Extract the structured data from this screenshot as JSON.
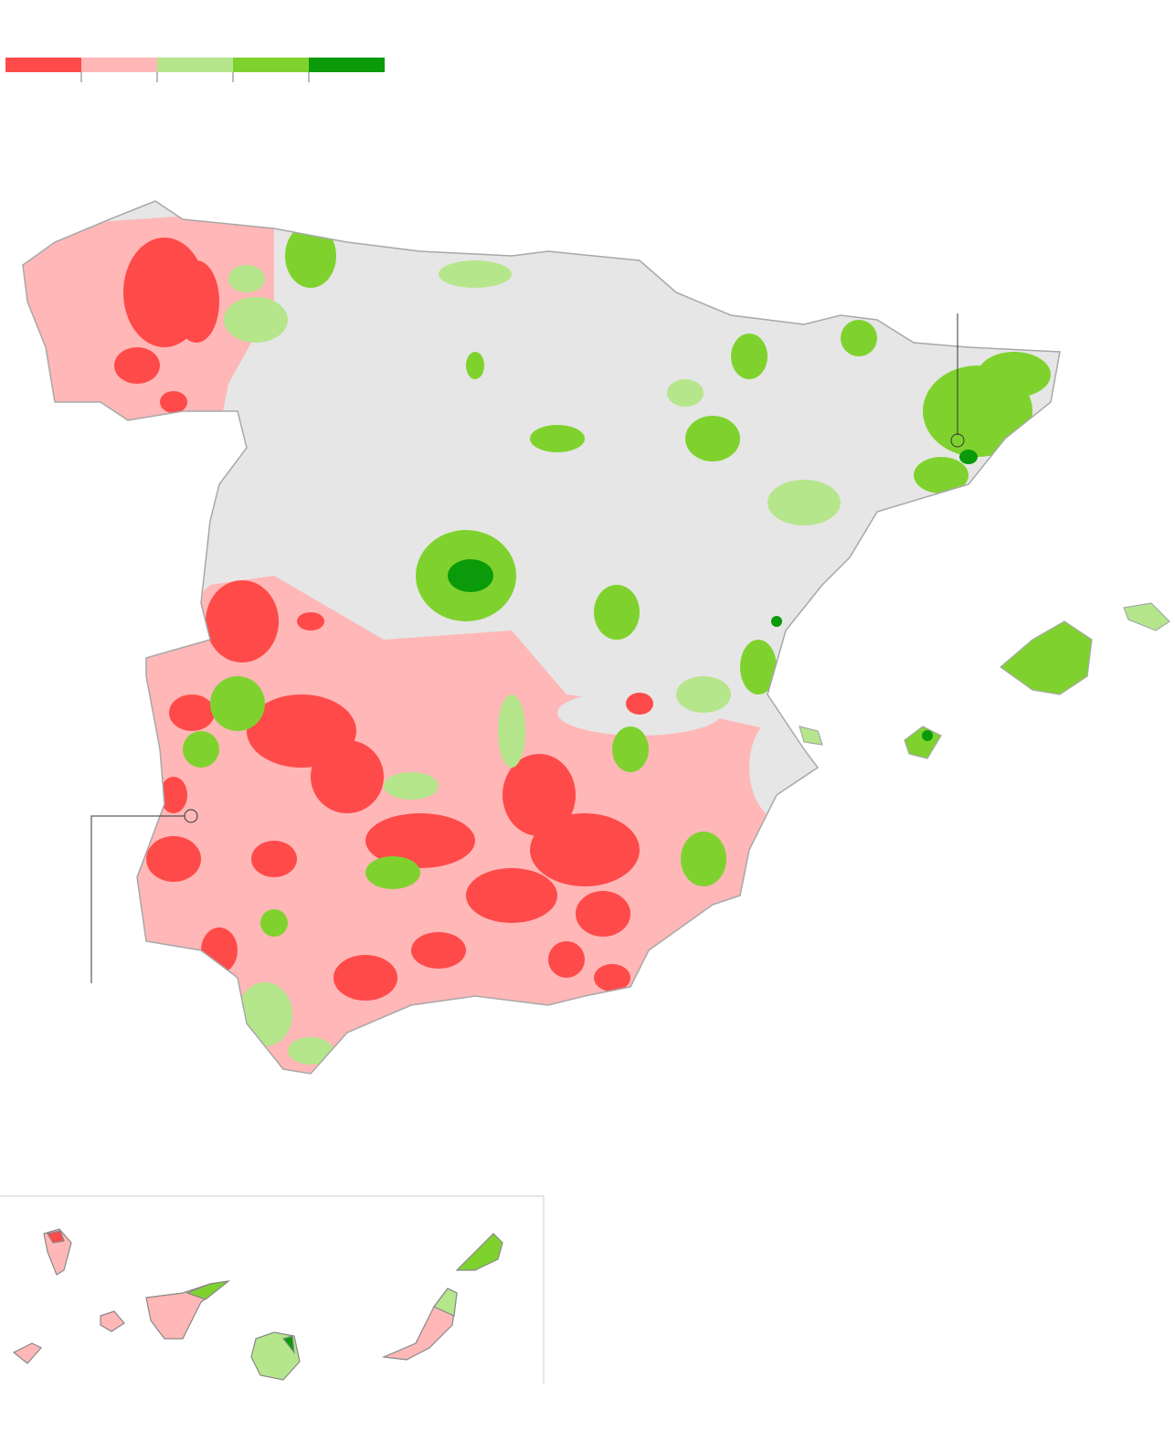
{
  "legend": {
    "colors": [
      "#ff4a4a",
      "#ffb7b7",
      "#b5e68c",
      "#7fd22e",
      "#0a9a0a"
    ]
  }
}
